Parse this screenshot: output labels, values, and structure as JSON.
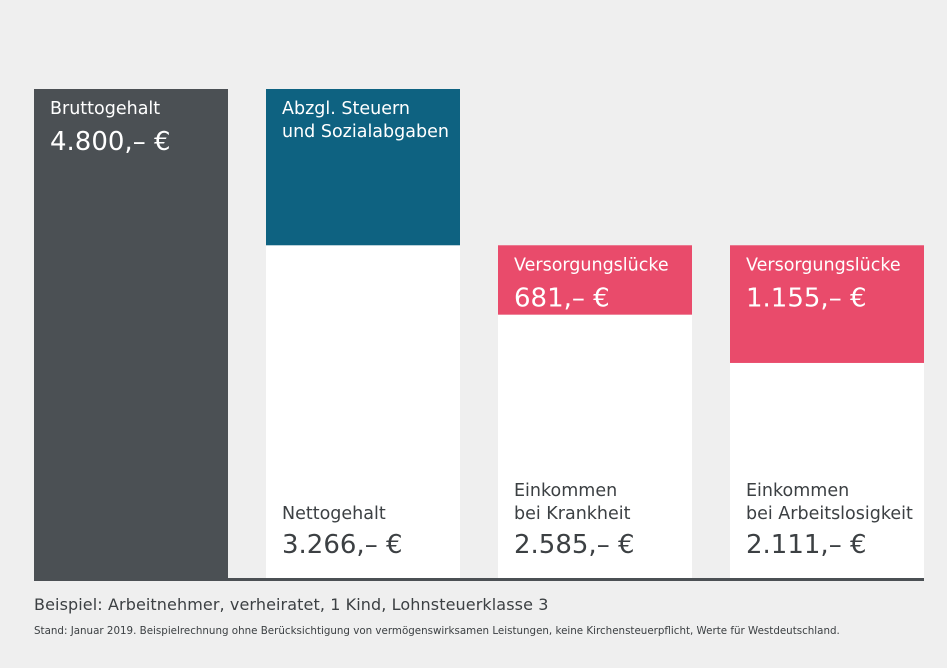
{
  "colors": {
    "background": "#efefef",
    "gross": "#4b5054",
    "deductions": "#0e6281",
    "gap": "#e94b6b",
    "net": "#ffffff",
    "axis": "#4b5054",
    "light_text": "#ffffff",
    "dark_text": "#3c4043"
  },
  "chart_data": {
    "type": "bar",
    "title": "",
    "ylim": [
      0,
      4800
    ],
    "bars": [
      {
        "id": "brutto",
        "segments": [
          {
            "kind": "gross",
            "label": [
              "Bruttogehalt"
            ],
            "value_text": "4.800,– €",
            "value": 4800
          }
        ]
      },
      {
        "id": "netto",
        "segments": [
          {
            "kind": "net",
            "label": [
              "Nettogehalt"
            ],
            "value_text": "3.266,– €",
            "value": 3266
          },
          {
            "kind": "deductions",
            "label": [
              "Abzgl. Steuern",
              "und Sozialabgaben"
            ],
            "value_text": "",
            "value": 1534
          }
        ]
      },
      {
        "id": "krankheit",
        "segments": [
          {
            "kind": "net",
            "label": [
              "Einkommen",
              "bei Krankheit"
            ],
            "value_text": "2.585,– €",
            "value": 2585
          },
          {
            "kind": "gap",
            "label": [
              "Versorgungslücke"
            ],
            "value_text": "681,– €",
            "value": 681
          }
        ]
      },
      {
        "id": "arbeitslosigkeit",
        "segments": [
          {
            "kind": "net",
            "label": [
              "Einkommen",
              "bei Arbeitslosigkeit"
            ],
            "value_text": "2.111,– €",
            "value": 2111
          },
          {
            "kind": "gap",
            "label": [
              "Versorgungslücke"
            ],
            "value_text": "1.155,– €",
            "value": 1155
          }
        ]
      }
    ]
  },
  "caption": "Beispiel: Arbeitnehmer, verheiratet, 1 Kind, Lohnsteuerklasse 3",
  "footnote": "Stand: Januar 2019. Beispielrechnung ohne Berücksichtigung von vermögenswirksamen Leistungen, keine Kirchensteuerpflicht, Werte für Westdeutschland."
}
